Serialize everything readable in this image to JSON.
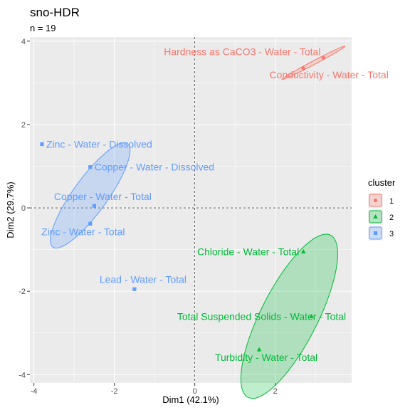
{
  "chart_data": {
    "type": "scatter",
    "title": "sno-HDR",
    "subtitle": "n = 19",
    "xlabel": "Dim1 (42.1%)",
    "ylabel": "Dim2 (29.7%)",
    "xlim": [
      -4.1,
      3.9
    ],
    "ylim": [
      -4.2,
      4.1
    ],
    "x_ticks": [
      -4,
      -2,
      0,
      2
    ],
    "y_ticks": [
      -4,
      -2,
      0,
      2,
      4
    ],
    "grid": true,
    "legend_title": "cluster",
    "legend_position": "right",
    "clusters": [
      {
        "name": "1",
        "color": "#F8766D",
        "fill": "rgba(248,118,109,0.25)",
        "shape": "circle",
        "points": [
          {
            "label": "Hardness as CaCO3 - Water - Total",
            "x": 3.2,
            "y": 3.6
          },
          {
            "label": "Conductivity - Water - Total",
            "x": 2.7,
            "y": 3.35
          }
        ],
        "ellipse": {
          "cx": 2.95,
          "cy": 3.48,
          "rx": 0.88,
          "ry": 0.045,
          "angle_deg": 27
        }
      },
      {
        "name": "2",
        "color": "#00BA38",
        "fill": "rgba(0,186,56,0.25)",
        "shape": "triangle",
        "points": [
          {
            "label": "Chloride - Water - Total",
            "x": 2.7,
            "y": -1.05
          },
          {
            "label": "Total Suspended Solids - Water - Total",
            "x": 2.9,
            "y": -2.6
          },
          {
            "label": "Turbidity - Water - Total",
            "x": 1.6,
            "y": -3.4
          }
        ],
        "ellipse": {
          "cx": 2.35,
          "cy": -2.6,
          "rx": 2.2,
          "ry": 0.7,
          "angle_deg": 62
        }
      },
      {
        "name": "3",
        "color": "#619CFF",
        "fill": "rgba(97,156,255,0.25)",
        "shape": "square",
        "points": [
          {
            "label": "Zinc - Water - Dissolved",
            "x": -3.8,
            "y": 1.53
          },
          {
            "label": "Copper - Water - Dissolved",
            "x": -2.6,
            "y": 0.98
          },
          {
            "label": "Copper - Water - Total",
            "x": -2.5,
            "y": 0.05
          },
          {
            "label": "Zinc - Water - Total",
            "x": -2.6,
            "y": -0.38
          },
          {
            "label": "Lead - Water - Total",
            "x": -1.5,
            "y": -1.95
          }
        ],
        "ellipse": {
          "cx": -2.6,
          "cy": 0.3,
          "rx": 1.55,
          "ry": 0.42,
          "angle_deg": 53
        }
      }
    ]
  }
}
